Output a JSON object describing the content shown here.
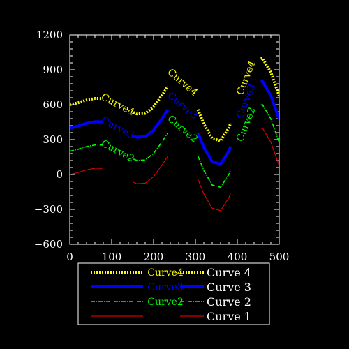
{
  "chart_data": {
    "type": "line",
    "title": "",
    "xlabel": "",
    "ylabel": "",
    "xlim": [
      0,
      500
    ],
    "ylim": [
      -600,
      1200
    ],
    "x_ticks": [
      0,
      100,
      200,
      300,
      400,
      500
    ],
    "y_ticks": [
      -600,
      -300,
      0,
      300,
      600,
      900,
      1200
    ],
    "x_tick_labels": [
      "0",
      "100",
      "200",
      "300",
      "400",
      "500"
    ],
    "y_tick_labels": [
      "−600",
      "−300",
      "0",
      "300",
      "600",
      "900",
      "1200"
    ],
    "grid": false,
    "legend_position": "bottom",
    "series": [
      {
        "name": "Curve 4",
        "inline_label": "Curve4",
        "color": "#ffff00",
        "style": "dotted-thick",
        "x": [
          0,
          20,
          40,
          60,
          80,
          100,
          120,
          140,
          160,
          180,
          200,
          220,
          240,
          260,
          280,
          300,
          320,
          340,
          360,
          380,
          400,
          420,
          440,
          460,
          480,
          500
        ],
        "y": [
          600,
          617,
          640,
          654,
          653,
          633,
          595,
          552,
          521,
          525,
          581,
          680,
          790,
          828,
          762,
          612,
          434,
          310,
          290,
          401,
          609,
          832,
          983,
          1000,
          878,
          675
        ]
      },
      {
        "name": "Curve 3",
        "inline_label": "Curve3",
        "color": "#0000ff",
        "style": "solid-thick",
        "x": [
          0,
          20,
          40,
          60,
          80,
          100,
          120,
          140,
          160,
          180,
          200,
          220,
          240,
          260,
          280,
          300,
          320,
          340,
          360,
          380,
          400,
          420,
          440,
          460,
          480,
          500
        ],
        "y": [
          400,
          417,
          440,
          454,
          453,
          433,
          395,
          352,
          321,
          325,
          381,
          480,
          590,
          628,
          562,
          412,
          234,
          110,
          90,
          201,
          409,
          632,
          783,
          800,
          678,
          475
        ]
      },
      {
        "name": "Curve 2",
        "inline_label": "Curve2",
        "color": "#00ff00",
        "style": "dash-dot",
        "x": [
          0,
          20,
          40,
          60,
          80,
          100,
          120,
          140,
          160,
          180,
          200,
          220,
          240,
          260,
          280,
          300,
          320,
          340,
          360,
          380,
          400,
          420,
          440,
          460,
          480,
          500
        ],
        "y": [
          200,
          217,
          240,
          254,
          253,
          233,
          195,
          152,
          121,
          125,
          181,
          280,
          390,
          428,
          362,
          212,
          34,
          -90,
          -110,
          1,
          209,
          432,
          583,
          600,
          478,
          275
        ]
      },
      {
        "name": "Curve 1",
        "inline_label": "",
        "color": "#ff0000",
        "style": "solid-thin",
        "x": [
          0,
          20,
          40,
          60,
          80,
          100,
          120,
          140,
          160,
          180,
          200,
          220,
          240,
          260,
          280,
          300,
          320,
          340,
          360,
          380,
          400,
          420,
          440,
          460,
          480,
          500
        ],
        "y": [
          0,
          17,
          40,
          54,
          53,
          33,
          -5,
          -48,
          -79,
          -75,
          -19,
          80,
          190,
          228,
          162,
          12,
          -166,
          -290,
          -310,
          -199,
          9,
          232,
          383,
          400,
          278,
          75
        ]
      }
    ]
  }
}
